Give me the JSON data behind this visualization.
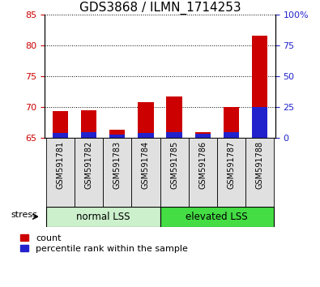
{
  "title": "GDS3868 / ILMN_1714253",
  "categories": [
    "GSM591781",
    "GSM591782",
    "GSM591783",
    "GSM591784",
    "GSM591785",
    "GSM591786",
    "GSM591787",
    "GSM591788"
  ],
  "red_values": [
    69.3,
    69.5,
    66.3,
    70.8,
    71.7,
    65.9,
    70.0,
    81.5
  ],
  "blue_values_pct": [
    4.0,
    4.5,
    2.5,
    4.0,
    4.5,
    3.0,
    4.5,
    25.0
  ],
  "y_base": 65,
  "ylim_left": [
    65,
    85
  ],
  "yticks_left": [
    65,
    70,
    75,
    80,
    85
  ],
  "ylim_right": [
    0,
    100
  ],
  "yticks_right": [
    0,
    25,
    50,
    75,
    100
  ],
  "ytick_labels_right": [
    "0",
    "25",
    "50",
    "75",
    "100%"
  ],
  "group1_label": "normal LSS",
  "group2_label": "elevated LSS",
  "group1_end": 3,
  "group2_start": 4,
  "stress_label": "stress",
  "legend_red": "count",
  "legend_blue": "percentile rank within the sample",
  "bar_width": 0.55,
  "red_color": "#cc0000",
  "blue_color": "#2222cc",
  "group1_color": "#ccf0cc",
  "group2_color": "#44dd44",
  "col_bg_color": "#e0e0e0",
  "title_fontsize": 11,
  "tick_fontsize": 8,
  "label_fontsize": 9,
  "grid_color": "#000000",
  "xlim": [
    -0.55,
    7.55
  ]
}
